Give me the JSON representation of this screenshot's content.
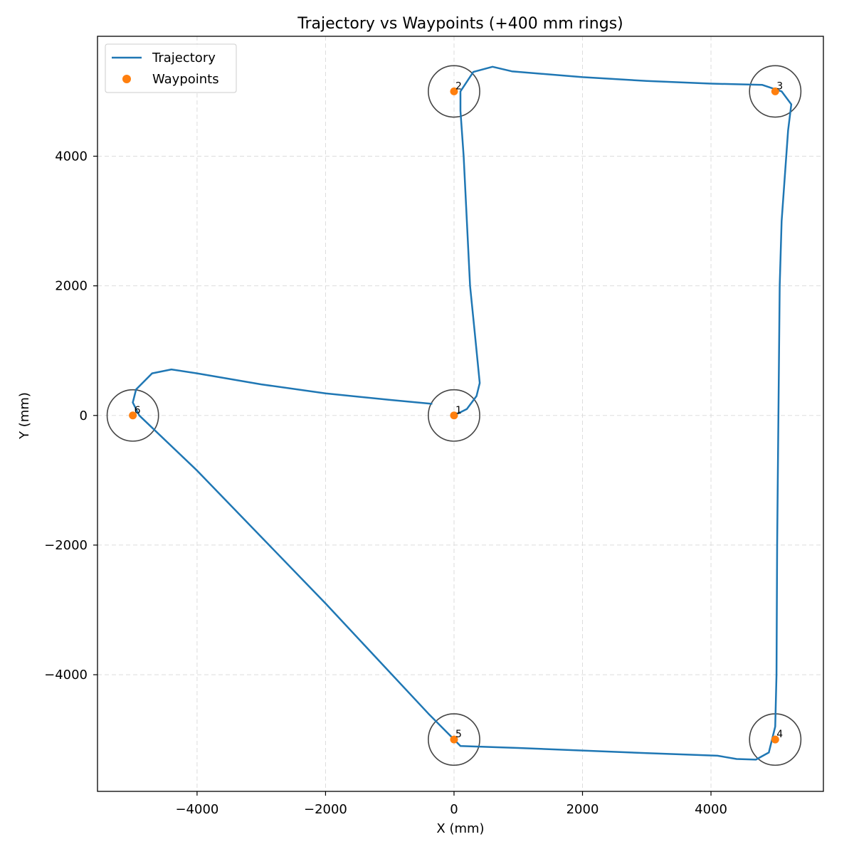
{
  "chart_data": {
    "type": "line",
    "title": "Trajectory vs Waypoints (+400 mm rings)",
    "xlabel": "X (mm)",
    "ylabel": "Y (mm)",
    "xlim": [
      -5550,
      5750
    ],
    "ylim": [
      -5800,
      5850
    ],
    "xticks": [
      -4000,
      -2000,
      0,
      2000,
      4000
    ],
    "yticks": [
      -4000,
      -2000,
      0,
      2000,
      4000
    ],
    "xtick_labels": [
      "−4000",
      "−2000",
      "0",
      "2000",
      "4000"
    ],
    "ytick_labels": [
      "−4000",
      "−2000",
      "0",
      "2000",
      "4000"
    ],
    "grid": true,
    "legend_position": "upper-left",
    "ring_radius": 400,
    "colors": {
      "trajectory": "#1f77b4",
      "waypoints": "#ff7f0e",
      "rings": "#444444",
      "grid": "#dddddd"
    },
    "series": [
      {
        "name": "Trajectory",
        "kind": "line",
        "points": [
          [
            0,
            0
          ],
          [
            200,
            100
          ],
          [
            350,
            300
          ],
          [
            400,
            500
          ],
          [
            380,
            700
          ],
          [
            320,
            1300
          ],
          [
            250,
            2000
          ],
          [
            200,
            3000
          ],
          [
            150,
            4000
          ],
          [
            100,
            4700
          ],
          [
            100,
            5000
          ],
          [
            300,
            5300
          ],
          [
            600,
            5380
          ],
          [
            900,
            5310
          ],
          [
            2000,
            5220
          ],
          [
            3000,
            5160
          ],
          [
            4000,
            5120
          ],
          [
            4800,
            5100
          ],
          [
            5100,
            5000
          ],
          [
            5250,
            4800
          ],
          [
            5200,
            4400
          ],
          [
            5100,
            3000
          ],
          [
            5070,
            2000
          ],
          [
            5050,
            0
          ],
          [
            5030,
            -2000
          ],
          [
            5020,
            -4000
          ],
          [
            5000,
            -4800
          ],
          [
            4900,
            -5200
          ],
          [
            4700,
            -5310
          ],
          [
            4400,
            -5300
          ],
          [
            4100,
            -5250
          ],
          [
            3000,
            -5210
          ],
          [
            2000,
            -5170
          ],
          [
            1000,
            -5130
          ],
          [
            100,
            -5100
          ],
          [
            0,
            -5000
          ],
          [
            -400,
            -4600
          ],
          [
            -2000,
            -2900
          ],
          [
            -4000,
            -850
          ],
          [
            -4900,
            0
          ],
          [
            -5000,
            200
          ],
          [
            -4950,
            400
          ],
          [
            -4700,
            650
          ],
          [
            -4400,
            710
          ],
          [
            -4000,
            650
          ],
          [
            -3000,
            480
          ],
          [
            -2000,
            340
          ],
          [
            -1000,
            240
          ],
          [
            -350,
            180
          ]
        ]
      },
      {
        "name": "Waypoints",
        "kind": "scatter",
        "points": [
          [
            0,
            0
          ],
          [
            0,
            5000
          ],
          [
            5000,
            5000
          ],
          [
            5000,
            -5000
          ],
          [
            0,
            -5000
          ],
          [
            -5000,
            0
          ]
        ],
        "labels": [
          "1",
          "2",
          "3",
          "4",
          "5",
          "6"
        ]
      }
    ]
  }
}
